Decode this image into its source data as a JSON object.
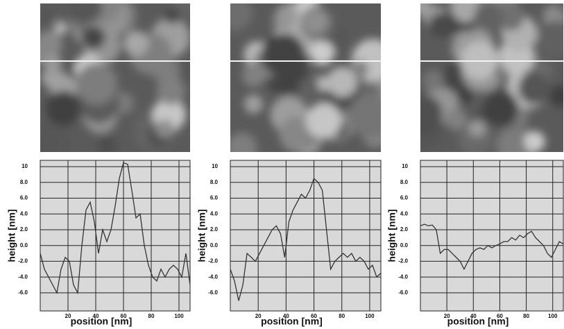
{
  "chart_data": [
    {
      "type": "line",
      "y_label": "height [nm]",
      "x_label": "position [nm]",
      "x": [
        0,
        3,
        6,
        9,
        12,
        15,
        18,
        21,
        24,
        27,
        30,
        33,
        36,
        39,
        42,
        45,
        48,
        51,
        54,
        57,
        60,
        63,
        66,
        69,
        72,
        75,
        78,
        81,
        84,
        87,
        90,
        93,
        96,
        99,
        102,
        105,
        108
      ],
      "series": [
        {
          "color": "#333333",
          "values": [
            -1,
            -3,
            -4,
            -5,
            -6,
            -3,
            -1.5,
            -2,
            -5,
            -6,
            0,
            4.5,
            5.5,
            3,
            -1,
            2,
            0.5,
            2,
            5,
            8.5,
            10.5,
            10.3,
            7,
            3.5,
            4,
            0,
            -2.5,
            -4,
            -4.5,
            -3,
            -4,
            -3,
            -2.5,
            -3,
            -4,
            -1,
            -5
          ]
        }
      ],
      "xlim": [
        0,
        108
      ],
      "ylim": [
        -8.3,
        10.8
      ],
      "xticks": [
        20,
        40,
        60,
        80,
        100
      ],
      "yticks": [
        {
          "value": -6,
          "label": "-6.0"
        },
        {
          "value": -4,
          "label": "-4.0"
        },
        {
          "value": -2,
          "label": "-2.0"
        },
        {
          "value": 0,
          "label": "0.0"
        },
        {
          "value": 2,
          "label": "2.0"
        },
        {
          "value": 4,
          "label": "4.0"
        },
        {
          "value": 6,
          "label": "6.0"
        },
        {
          "value": 8,
          "label": "8.0"
        },
        10
      ],
      "grid": true
    },
    {
      "type": "line",
      "y_label": "height [nm]",
      "x_label": "position [nm]",
      "x": [
        0,
        3,
        6,
        9,
        12,
        15,
        18,
        21,
        24,
        27,
        30,
        33,
        36,
        39,
        42,
        45,
        48,
        51,
        54,
        57,
        60,
        63,
        66,
        69,
        72,
        75,
        78,
        81,
        84,
        87,
        90,
        93,
        96,
        99,
        102,
        105,
        108
      ],
      "series": [
        {
          "color": "#333333",
          "values": [
            -3,
            -4.5,
            -7,
            -5,
            -1,
            -1.5,
            -2,
            -1,
            0,
            1,
            2,
            2.5,
            1.5,
            -1.5,
            3,
            4.5,
            5.5,
            6.5,
            6,
            7,
            8.5,
            8,
            7,
            2,
            -3,
            -2,
            -1.5,
            -1,
            -1.5,
            -1,
            -2,
            -1.5,
            -2,
            -3,
            -2.5,
            -4,
            -3.5
          ]
        }
      ],
      "xlim": [
        0,
        108
      ],
      "ylim": [
        -8.3,
        10.8
      ],
      "xticks": [
        20,
        40,
        60,
        80,
        100
      ],
      "yticks": [
        {
          "value": -6,
          "label": "-6.0"
        },
        {
          "value": -4,
          "label": "-4.0"
        },
        {
          "value": -2,
          "label": "-2.0"
        },
        {
          "value": 0,
          "label": "0.0"
        },
        {
          "value": 2,
          "label": "2.0"
        },
        {
          "value": 4,
          "label": "4.0"
        },
        {
          "value": 6,
          "label": "6.0"
        },
        {
          "value": 8,
          "label": "8.0"
        },
        10
      ],
      "grid": true
    },
    {
      "type": "line",
      "y_label": "height [nm]",
      "x_label": "position [nm]",
      "x": [
        0,
        3,
        6,
        9,
        12,
        15,
        18,
        21,
        24,
        27,
        30,
        33,
        36,
        39,
        42,
        45,
        48,
        51,
        54,
        57,
        60,
        63,
        66,
        69,
        72,
        75,
        78,
        81,
        84,
        87,
        90,
        93,
        96,
        99,
        102,
        105,
        108
      ],
      "series": [
        {
          "color": "#333333",
          "values": [
            2.5,
            2.7,
            2.5,
            2.6,
            2,
            -1,
            -0.5,
            -0.5,
            -1,
            -1.5,
            -2,
            -3,
            -2,
            -1,
            -0.5,
            -0.3,
            -0.5,
            0,
            -0.3,
            0,
            0.2,
            0.5,
            0.5,
            1,
            0.7,
            1.3,
            1,
            1.5,
            1.8,
            1,
            0.5,
            0,
            -1,
            -1.5,
            -0.5,
            0.5,
            0.2
          ]
        }
      ],
      "xlim": [
        0,
        108
      ],
      "ylim": [
        -8.3,
        10.8
      ],
      "xticks": [
        20,
        40,
        60,
        80,
        100
      ],
      "yticks": [
        {
          "value": -6,
          "label": "-6.0"
        },
        {
          "value": -4,
          "label": "-4.0"
        },
        {
          "value": -2,
          "label": "-2.0"
        },
        {
          "value": 0,
          "label": "0.0"
        },
        {
          "value": 2,
          "label": "2.0"
        },
        {
          "value": 4,
          "label": "4.0"
        },
        {
          "value": 6,
          "label": "6.0"
        },
        {
          "value": 8,
          "label": "8.0"
        },
        10
      ],
      "grid": true
    }
  ]
}
